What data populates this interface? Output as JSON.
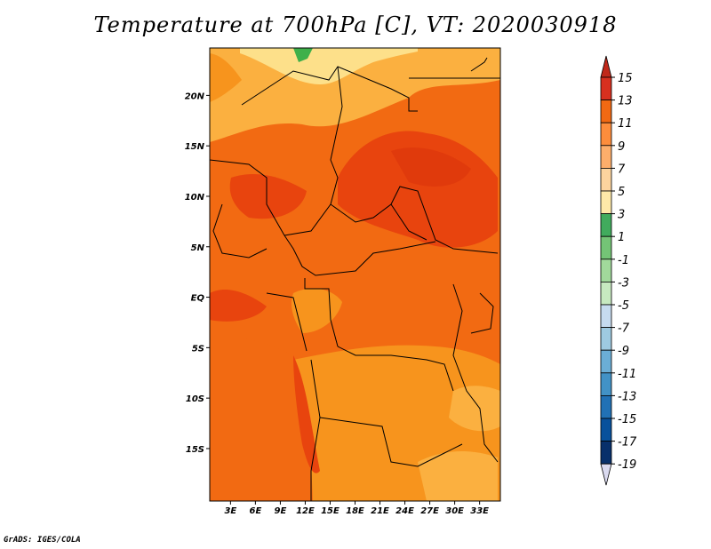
{
  "title": "Temperature at 700hPa [C], VT: 2020030918",
  "credit": "GrADS: IGES/COLA",
  "map": {
    "lon_ticks": [
      "3E",
      "6E",
      "9E",
      "12E",
      "15E",
      "18E",
      "21E",
      "24E",
      "27E",
      "30E",
      "33E"
    ],
    "lat_ticks": [
      "20N",
      "15N",
      "10N",
      "5N",
      "EQ",
      "5S",
      "10S",
      "15S"
    ]
  },
  "colorbar": {
    "labels": [
      "15",
      "13",
      "11",
      "9",
      "7",
      "5",
      "3",
      "1",
      "-1",
      "-3",
      "-5",
      "-7",
      "-9",
      "-11",
      "-13",
      "-15",
      "-17",
      "-19"
    ],
    "colors": [
      "#d7301f",
      "#f16913",
      "#fd8d3c",
      "#fdae6b",
      "#fdd49e",
      "#fee8a8",
      "#41ab5d",
      "#74c476",
      "#a1d99b",
      "#c7e9c0",
      "#c6dbef",
      "#9ecae1",
      "#6baed6",
      "#4292c6",
      "#2171b5",
      "#08519c",
      "#08306b"
    ],
    "top_arrow_color": "#c0281a",
    "bottom_arrow_color": "#dadaf0"
  },
  "palette": {
    "hot": "#e8440e",
    "warm": "#f26a12",
    "mid": "#f7941d",
    "cool": "#fbb040",
    "pale": "#fde08a",
    "green": "#3fb04a"
  }
}
